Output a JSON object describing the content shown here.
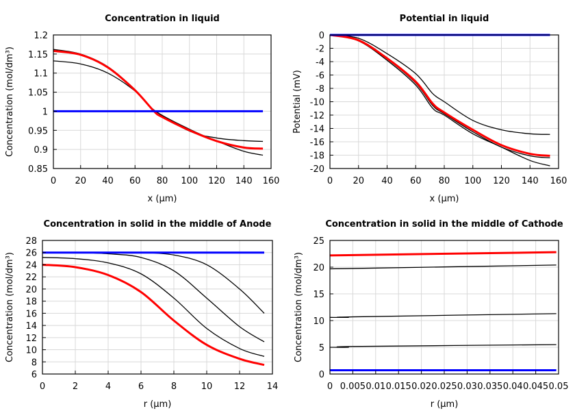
{
  "chart_data": [
    {
      "type": "line",
      "title": "Concentration in liquid",
      "xlabel": "x (µm)",
      "ylabel": "Concentration (mol/dm³)",
      "xlim": [
        0,
        160
      ],
      "ylim": [
        0.85,
        1.2
      ],
      "xticks": [
        0,
        20,
        40,
        60,
        80,
        100,
        120,
        140,
        160
      ],
      "yticks": [
        0.85,
        0.9,
        0.95,
        1,
        1.05,
        1.1,
        1.15,
        1.2
      ],
      "grid": true,
      "series": [
        {
          "color": "#000000",
          "x": [
            0,
            20,
            40,
            60,
            74,
            100,
            120,
            140,
            154
          ],
          "y": [
            1.162,
            1.15,
            1.117,
            1.057,
            1.003,
            0.953,
            0.922,
            0.895,
            0.885
          ]
        },
        {
          "color": "#000000",
          "x": [
            0,
            20,
            40,
            60,
            74,
            100,
            120,
            140,
            154
          ],
          "y": [
            1.132,
            1.124,
            1.1,
            1.053,
            1.003,
            0.948,
            0.93,
            0.923,
            0.921
          ]
        },
        {
          "color": "#ff0000",
          "x": [
            0,
            20,
            40,
            60,
            74,
            80,
            100,
            120,
            140,
            154
          ],
          "y": [
            1.158,
            1.148,
            1.115,
            1.055,
            1.0,
            0.985,
            0.95,
            0.922,
            0.905,
            0.902
          ]
        },
        {
          "color": "#0000ff",
          "x": [
            0,
            154
          ],
          "y": [
            1,
            1
          ]
        }
      ]
    },
    {
      "type": "line",
      "title": "Potential in liquid",
      "xlabel": "x (µm)",
      "ylabel": "Potential (mV)",
      "xlim": [
        0,
        160
      ],
      "ylim": [
        -20,
        0
      ],
      "xticks": [
        0,
        20,
        40,
        60,
        80,
        100,
        120,
        140,
        160
      ],
      "yticks": [
        -20,
        -18,
        -16,
        -14,
        -12,
        -10,
        -8,
        -6,
        -4,
        -2,
        0
      ],
      "grid": true,
      "series": [
        {
          "color": "#000000",
          "x": [
            0,
            20,
            40,
            60,
            72,
            80,
            100,
            120,
            140,
            154
          ],
          "y": [
            0,
            -0.5,
            -2.8,
            -5.8,
            -8.8,
            -10,
            -12.8,
            -14.2,
            -14.8,
            -14.9
          ]
        },
        {
          "color": "#000000",
          "x": [
            0,
            20,
            40,
            60,
            72,
            80,
            100,
            120,
            140,
            154
          ],
          "y": [
            0,
            -0.9,
            -3.8,
            -7.5,
            -11,
            -12,
            -14.8,
            -16.8,
            -18.8,
            -19.6
          ]
        },
        {
          "color": "#000000",
          "x": [
            0,
            20,
            40,
            60,
            72,
            80,
            100,
            120,
            140,
            154
          ],
          "y": [
            0,
            -0.8,
            -3.6,
            -7.2,
            -10.6,
            -11.8,
            -14.5,
            -16.8,
            -18.1,
            -18.4
          ]
        },
        {
          "color": "#ff0000",
          "x": [
            0,
            20,
            40,
            60,
            72,
            80,
            100,
            120,
            140,
            154
          ],
          "y": [
            0,
            -0.8,
            -3.5,
            -7,
            -10.3,
            -11.6,
            -14.2,
            -16.5,
            -17.8,
            -18.1
          ]
        },
        {
          "color": "#0000ff",
          "x": [
            0,
            154
          ],
          "y": [
            0,
            0
          ]
        }
      ]
    },
    {
      "type": "line",
      "title": "Concentration in solid in the middle of Anode",
      "xlabel": "r (µm)",
      "ylabel": "Concentration (mol/dm³)",
      "xlim": [
        0,
        14
      ],
      "ylim": [
        6,
        28
      ],
      "xticks": [
        0,
        2,
        4,
        6,
        8,
        10,
        12,
        14
      ],
      "yticks": [
        6,
        8,
        10,
        12,
        14,
        16,
        18,
        20,
        22,
        24,
        26,
        28
      ],
      "grid": true,
      "series": [
        {
          "color": "#000000",
          "x": [
            0,
            4,
            6,
            8,
            10,
            12,
            13.5
          ],
          "y": [
            26,
            26,
            26,
            25.6,
            24,
            20,
            16
          ]
        },
        {
          "color": "#000000",
          "x": [
            0,
            2,
            4,
            6,
            8,
            10,
            12,
            13.5
          ],
          "y": [
            26,
            26,
            25.8,
            25.2,
            23,
            18.5,
            13.8,
            11.3
          ]
        },
        {
          "color": "#000000",
          "x": [
            0,
            2,
            4,
            6,
            8,
            10,
            12,
            13.5
          ],
          "y": [
            25.2,
            25,
            24.3,
            22.5,
            18.5,
            13.5,
            10.2,
            8.9
          ]
        },
        {
          "color": "#ff0000",
          "x": [
            0,
            2,
            4,
            6,
            8,
            10,
            12,
            13.5
          ],
          "y": [
            24,
            23.6,
            22.3,
            19.5,
            14.8,
            10.8,
            8.5,
            7.5
          ]
        },
        {
          "color": "#0000ff",
          "x": [
            0,
            13.5
          ],
          "y": [
            26,
            26
          ]
        }
      ]
    },
    {
      "type": "line",
      "title": "Concentration in solid in the middle of Cathode",
      "xlabel": "r (µm)",
      "ylabel": "Concentration (mol/dm³)",
      "xlim": [
        0,
        0.05
      ],
      "ylim": [
        0,
        25
      ],
      "xticks": [
        0,
        0.005,
        0.01,
        0.015,
        0.02,
        0.025,
        0.03,
        0.035,
        0.04,
        0.045,
        0.05
      ],
      "xticklabels": [
        "0",
        "0.005",
        "0.01",
        "0.015",
        "0.02",
        "0.025",
        "0.03",
        "0.035",
        "0.04",
        "0.045",
        "0.05"
      ],
      "yticks": [
        0,
        5,
        10,
        15,
        20,
        25
      ],
      "grid": true,
      "series": [
        {
          "color": "#000000",
          "x": [
            0,
            0.005,
            0.0495
          ],
          "y": [
            19.7,
            19.75,
            20.4
          ]
        },
        {
          "color": "#000000",
          "x": [
            0,
            0.004,
            0.005,
            0.0495
          ],
          "y": [
            10.6,
            10.6,
            10.7,
            11.3
          ]
        },
        {
          "color": "#000000",
          "x": [
            0,
            0.004,
            0.005,
            0.0495
          ],
          "y": [
            5.0,
            5.0,
            5.15,
            5.5
          ]
        },
        {
          "color": "#ff0000",
          "x": [
            0,
            0.0495
          ],
          "y": [
            22.2,
            22.8
          ]
        },
        {
          "color": "#0000ff",
          "x": [
            0,
            0.0495
          ],
          "y": [
            0.7,
            0.7
          ]
        }
      ]
    }
  ]
}
